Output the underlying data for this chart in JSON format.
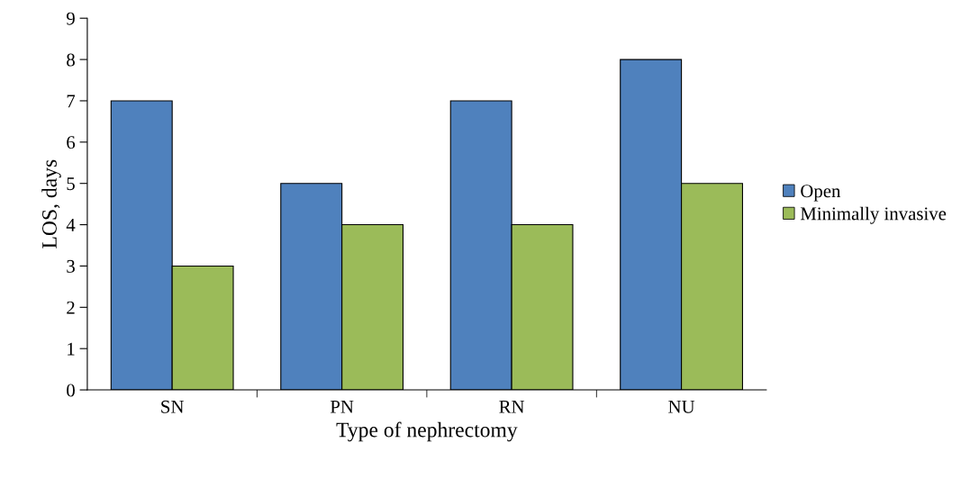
{
  "chart_data": {
    "type": "bar",
    "xlabel": "Type of nephrectomy",
    "ylabel": "LOS, days",
    "categories": [
      "SN",
      "PN",
      "RN",
      "NU"
    ],
    "series": [
      {
        "name": "Open",
        "color": "#4f81bd",
        "values": [
          7,
          5,
          7,
          8
        ]
      },
      {
        "name": "Minimally invasive",
        "color": "#9bbb59",
        "values": [
          3,
          4,
          4,
          5
        ]
      }
    ],
    "ylim": [
      0,
      9
    ],
    "yticks": [
      0,
      1,
      2,
      3,
      4,
      5,
      6,
      7,
      8,
      9
    ],
    "grid": false,
    "legend": "right"
  }
}
